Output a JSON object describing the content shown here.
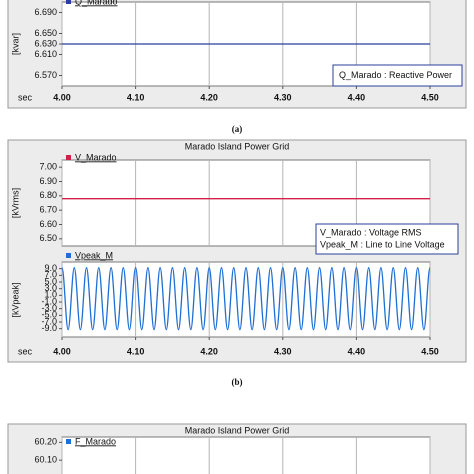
{
  "chart_data": [
    {
      "type": "line",
      "caption": "(a)",
      "y_label": "[kvar]",
      "x_label": "sec",
      "legend_entries": [
        "Q_Marado : Reactive Power"
      ],
      "x": [
        4.0,
        4.5
      ],
      "series": [
        {
          "name": "Q_Marado",
          "color": "#2b3f9e",
          "values": [
            6.63,
            6.63
          ]
        }
      ],
      "xlim": [
        4.0,
        4.5
      ],
      "xticks": [
        {
          "value": 4.0,
          "label": "4.00"
        },
        {
          "value": 4.1,
          "label": "4.10"
        },
        {
          "value": 4.2,
          "label": "4.20"
        },
        {
          "value": 4.3,
          "label": "4.30"
        },
        {
          "value": 4.4,
          "label": "4.40"
        },
        {
          "value": 4.5,
          "label": "4.50"
        }
      ],
      "ylim": [
        6.55,
        6.71
      ],
      "yticks": [
        {
          "value": 6.69,
          "label": "6.690"
        },
        {
          "value": 6.65,
          "label": "6.650"
        },
        {
          "value": 6.63,
          "label": "6.630"
        },
        {
          "value": 6.61,
          "label": "6.610"
        },
        {
          "value": 6.57,
          "label": "6.570"
        }
      ],
      "grid": "x"
    },
    {
      "type": "line",
      "title": "Marado Island Power Grid",
      "y_label": "[kVrms]",
      "legend_entries": [
        "V_Marado : Voltage RMS"
      ],
      "x": [
        4.0,
        4.5
      ],
      "series": [
        {
          "name": "V_Marado",
          "color": "#d0204a",
          "values": [
            6.78,
            6.78
          ]
        }
      ],
      "xlim": [
        4.0,
        4.5
      ],
      "ylim": [
        6.45,
        7.05
      ],
      "yticks": [
        {
          "value": 7.0,
          "label": "7.00"
        },
        {
          "value": 6.9,
          "label": "6.90"
        },
        {
          "value": 6.8,
          "label": "6.80"
        },
        {
          "value": 6.7,
          "label": "6.70"
        },
        {
          "value": 6.6,
          "label": "6.60"
        },
        {
          "value": 6.5,
          "label": "6.50"
        }
      ],
      "grid": "x"
    },
    {
      "type": "wave",
      "caption": "(b)",
      "y_label": "[kVpeak]",
      "x_label": "sec",
      "legend_entries": [
        "Vpeak_M : Line to Line Voltage"
      ],
      "x": [
        4.0,
        4.0083,
        4.0167,
        4.025,
        4.0333,
        4.0417,
        4.05,
        4.0583,
        4.0667,
        4.075,
        4.0833,
        4.0917,
        4.1,
        4.1083,
        4.1167,
        4.125,
        4.1333,
        4.1417,
        4.15,
        4.1583,
        4.1667,
        4.175,
        4.1833,
        4.1917,
        4.2,
        4.2083,
        4.2167,
        4.225,
        4.2333,
        4.2417,
        4.25,
        4.2583,
        4.2667,
        4.275,
        4.2833,
        4.2917,
        4.3,
        4.3083,
        4.3167,
        4.325,
        4.3333,
        4.3417,
        4.35,
        4.3583,
        4.3667,
        4.375,
        4.3833,
        4.3917,
        4.4,
        4.4083,
        4.4167,
        4.425,
        4.4333,
        4.4417,
        4.45,
        4.4583,
        4.4667,
        4.475,
        4.4833,
        4.4917,
        4.5
      ],
      "series": [
        {
          "name": "Vpeak_M",
          "color": "#1f6fd6",
          "values": [
            9.3,
            -9.3,
            9.3,
            -9.3,
            9.3,
            -9.3,
            9.3,
            -9.3,
            9.3,
            -9.3,
            9.3,
            -9.3,
            9.3,
            -9.3,
            9.3,
            -9.3,
            9.3,
            -9.3,
            9.3,
            -9.3,
            9.3,
            -9.3,
            9.3,
            -9.3,
            9.3,
            -9.3,
            9.3,
            -9.3,
            9.3,
            -9.3,
            9.3,
            -9.3,
            9.3,
            -9.3,
            9.3,
            -9.3,
            9.3,
            -9.3,
            9.3,
            -9.3,
            9.3,
            -9.3,
            9.3,
            -9.3,
            9.3,
            -9.3,
            9.3,
            -9.3,
            9.3,
            -9.3,
            9.3,
            -9.3,
            9.3,
            -9.3,
            9.3,
            -9.3,
            9.3,
            -9.3,
            9.3,
            -9.3,
            9.3
          ]
        }
      ],
      "xlim": [
        4.0,
        4.5
      ],
      "xticks": [
        {
          "value": 4.0,
          "label": "4.00"
        },
        {
          "value": 4.1,
          "label": "4.10"
        },
        {
          "value": 4.2,
          "label": "4.20"
        },
        {
          "value": 4.3,
          "label": "4.30"
        },
        {
          "value": 4.4,
          "label": "4.40"
        },
        {
          "value": 4.5,
          "label": "4.50"
        }
      ],
      "ylim": [
        -11.5,
        11
      ],
      "yticks": [
        {
          "value": 9,
          "label": "9.0"
        },
        {
          "value": 7,
          "label": "7.0"
        },
        {
          "value": 5,
          "label": "5.0"
        },
        {
          "value": 3,
          "label": "3.0"
        },
        {
          "value": 1,
          "label": "1.0"
        },
        {
          "value": -1,
          "label": "-1.0"
        },
        {
          "value": -3,
          "label": "-3.0"
        },
        {
          "value": -5,
          "label": "-5.0"
        },
        {
          "value": -7,
          "label": "-7.0"
        },
        {
          "value": -9,
          "label": "-9.0"
        }
      ],
      "grid": "x"
    },
    {
      "type": "line",
      "title": "Marado Island Power Grid",
      "series": [
        {
          "name": "F_Marado",
          "color": "#1f6fd6"
        }
      ],
      "ylim": [
        60.0,
        60.23
      ],
      "yticks": [
        {
          "value": 60.2,
          "label": "60.20"
        },
        {
          "value": 60.1,
          "label": "60.10"
        }
      ],
      "grid": "x"
    }
  ]
}
